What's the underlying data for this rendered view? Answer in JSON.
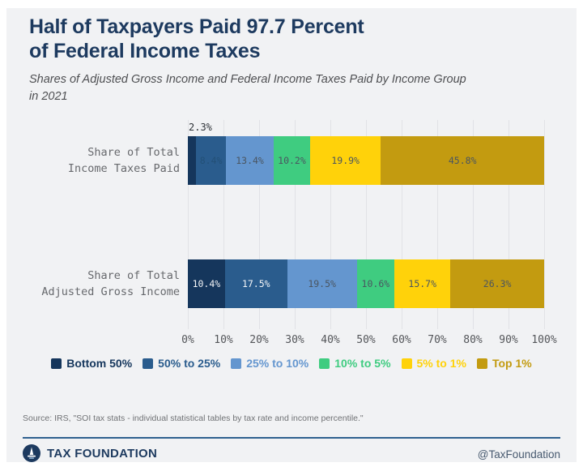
{
  "page": {
    "background": "#f1f2f4",
    "accent_navy": "#1d3a5f"
  },
  "header": {
    "title_lines": [
      "Half of Taxpayers Paid 97.7 Percent",
      "of Federal Income Taxes"
    ],
    "subtitle_lines": [
      "Shares of Adjusted Gross Income and Federal Income Taxes Paid by Income Group",
      "in 2021"
    ]
  },
  "chart_data": {
    "type": "bar",
    "orientation": "horizontal",
    "stacked": true,
    "value_unit": "%",
    "xlim": [
      0,
      100
    ],
    "x_ticks": [
      "0%",
      "10%",
      "20%",
      "30%",
      "40%",
      "50%",
      "60%",
      "70%",
      "80%",
      "90%",
      "100%"
    ],
    "grid": true,
    "legend_position": "bottom",
    "label_colors": {
      "dark": "#4a5560",
      "light": "#f5f7f9",
      "dim": "#235077"
    },
    "legend": [
      {
        "label": "Bottom 50%",
        "color": "#15365c"
      },
      {
        "label": "50% to 25%",
        "color": "#2a5c8d"
      },
      {
        "label": "25% to 10%",
        "color": "#6496cf"
      },
      {
        "label": "10% to 5%",
        "color": "#3fcc80"
      },
      {
        "label": "5% to 1%",
        "color": "#ffd20a"
      },
      {
        "label": "Top 1%",
        "color": "#c39b10"
      }
    ],
    "rows": [
      {
        "category_lines": [
          "Share of Total",
          "Income Taxes Paid"
        ],
        "outside_label": "2.3%",
        "segments": [
          {
            "group": "Bottom 50%",
            "value": 2.3,
            "label": "",
            "tone": "dark"
          },
          {
            "group": "50% to 25%",
            "value": 8.4,
            "label": "8.4%",
            "tone": "dim"
          },
          {
            "group": "25% to 10%",
            "value": 13.4,
            "label": "13.4%",
            "tone": "dark"
          },
          {
            "group": "10% to 5%",
            "value": 10.2,
            "label": "10.2%",
            "tone": "dark"
          },
          {
            "group": "5% to 1%",
            "value": 19.9,
            "label": "19.9%",
            "tone": "dark"
          },
          {
            "group": "Top 1%",
            "value": 45.8,
            "label": "45.8%",
            "tone": "dark"
          }
        ]
      },
      {
        "category_lines": [
          "Share of Total",
          "Adjusted Gross Income"
        ],
        "outside_label": "",
        "segments": [
          {
            "group": "Bottom 50%",
            "value": 10.4,
            "label": "10.4%",
            "tone": "light"
          },
          {
            "group": "50% to 25%",
            "value": 17.5,
            "label": "17.5%",
            "tone": "light"
          },
          {
            "group": "25% to 10%",
            "value": 19.5,
            "label": "19.5%",
            "tone": "dark"
          },
          {
            "group": "10% to 5%",
            "value": 10.6,
            "label": "10.6%",
            "tone": "dark"
          },
          {
            "group": "5% to 1%",
            "value": 15.7,
            "label": "15.7%",
            "tone": "dark"
          },
          {
            "group": "Top 1%",
            "value": 26.3,
            "label": "26.3%",
            "tone": "dark"
          }
        ]
      }
    ]
  },
  "footer": {
    "source": "Source: IRS, \"SOI tax stats - individual statistical tables by tax rate and income percentile.\"",
    "brand": "TAX FOUNDATION",
    "handle": "@TaxFoundation"
  }
}
